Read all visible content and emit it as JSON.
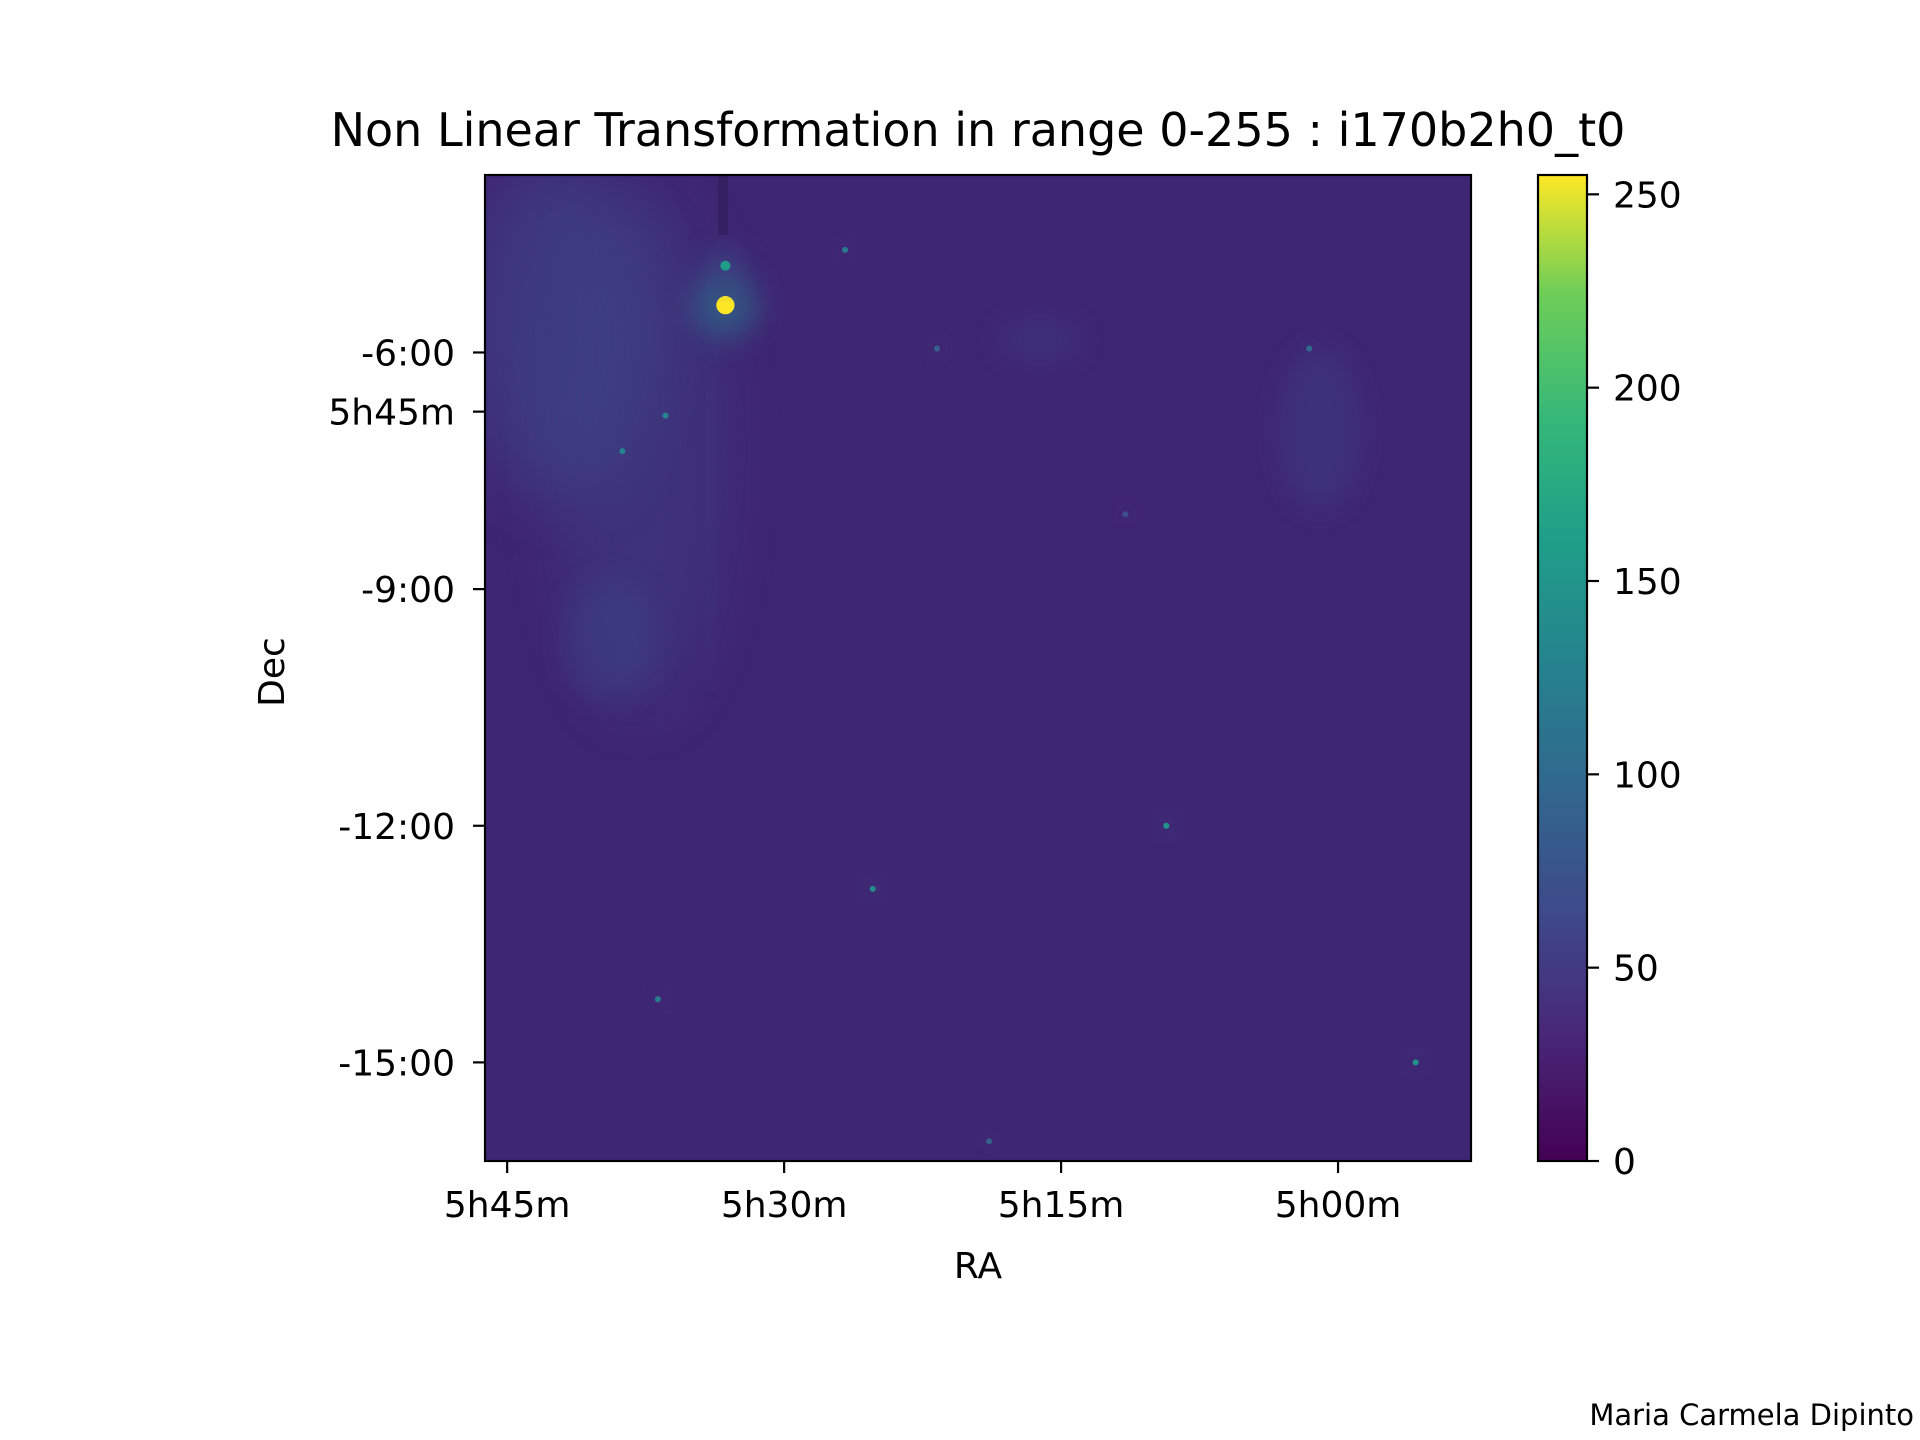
{
  "chart_data": {
    "type": "heatmap",
    "title": "Non Linear Transformation in range 0-255 : i170b2h0_t0",
    "xlabel": "RA",
    "ylabel": "Dec",
    "x_ticks": [
      {
        "label": "5h45m",
        "ra_hours": 5.75
      },
      {
        "label": "5h30m",
        "ra_hours": 5.5
      },
      {
        "label": "5h15m",
        "ra_hours": 5.25
      },
      {
        "label": "5h00m",
        "ra_hours": 5.0
      }
    ],
    "y_ticks": [
      {
        "label": "-6:00",
        "dec_deg": -6.0
      },
      {
        "label": "5h45m",
        "dec_deg": -6.75
      },
      {
        "label": "-9:00",
        "dec_deg": -9.0
      },
      {
        "label": "-12:00",
        "dec_deg": -12.0
      },
      {
        "label": "-15:00",
        "dec_deg": -15.0
      }
    ],
    "xlim": [
      5.77,
      4.88
    ],
    "ylim": [
      -16.25,
      -3.75
    ],
    "background_level": 30,
    "sources": [
      {
        "ra": 5.553,
        "dec": -5.4,
        "value": 255,
        "spread": 0.55
      },
      {
        "ra": 5.553,
        "dec": -4.9,
        "value": 160,
        "spread": 0.3
      },
      {
        "ra": 5.445,
        "dec": -4.7,
        "value": 120,
        "spread": 0.12
      },
      {
        "ra": 5.362,
        "dec": -5.95,
        "value": 90,
        "spread": 0.12
      },
      {
        "ra": 5.026,
        "dec": -5.95,
        "value": 100,
        "spread": 0.12
      },
      {
        "ra": 5.607,
        "dec": -6.8,
        "value": 130,
        "spread": 0.12
      },
      {
        "ra": 5.646,
        "dec": -7.25,
        "value": 130,
        "spread": 0.12
      },
      {
        "ra": 5.192,
        "dec": -8.05,
        "value": 70,
        "spread": 0.12
      },
      {
        "ra": 5.155,
        "dec": -12.0,
        "value": 150,
        "spread": 0.13
      },
      {
        "ra": 5.42,
        "dec": -12.8,
        "value": 140,
        "spread": 0.13
      },
      {
        "ra": 5.614,
        "dec": -14.2,
        "value": 120,
        "spread": 0.12
      },
      {
        "ra": 4.93,
        "dec": -15.0,
        "value": 150,
        "spread": 0.12
      },
      {
        "ra": 5.315,
        "dec": -16.0,
        "value": 90,
        "spread": 0.1
      }
    ],
    "colorbar": {
      "colormap": "viridis",
      "range": [
        0,
        255
      ],
      "ticks": [
        "0",
        "50",
        "100",
        "150",
        "200",
        "250"
      ]
    }
  },
  "footer": {
    "credit": "Maria Carmela Dipinto"
  }
}
